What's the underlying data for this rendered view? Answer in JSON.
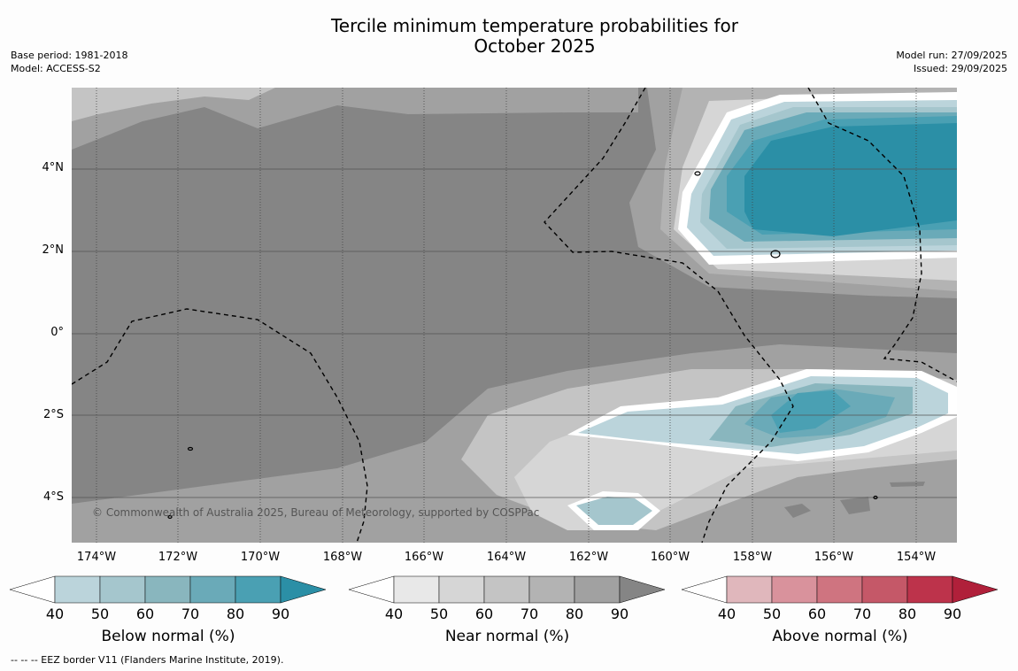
{
  "title_line1": "Tercile minimum temperature probabilities for",
  "title_line2": "October 2025",
  "meta_left": {
    "line1": "Base period: 1981-2018",
    "line2": "Model: ACCESS-S2"
  },
  "meta_right": {
    "line1": "Model run: 27/09/2025",
    "line2": "Issued: 29/09/2025"
  },
  "map": {
    "lat_labels": [
      "4°N",
      "2°N",
      "0°",
      "2°S",
      "4°S"
    ],
    "lon_labels": [
      "174°W",
      "172°W",
      "170°W",
      "168°W",
      "166°W",
      "164°W",
      "162°W",
      "160°W",
      "158°W",
      "156°W",
      "154°W"
    ],
    "copyright": "© Commonwealth of Australia 2025, Bureau of Meteorology, supported by COSPPac",
    "background_color": "#858585"
  },
  "colorbars": [
    {
      "label": "Below normal (%)",
      "ticks": [
        "40",
        "50",
        "60",
        "70",
        "80",
        "90"
      ],
      "colors": [
        "#ffffff",
        "#bbd4db",
        "#a5c6cd",
        "#89b6be",
        "#6aaab8",
        "#4aa0b3",
        "#2b8fa6"
      ]
    },
    {
      "label": "Near normal (%)",
      "ticks": [
        "40",
        "50",
        "60",
        "70",
        "80",
        "90"
      ],
      "colors": [
        "#ffffff",
        "#e8e8e8",
        "#d6d6d6",
        "#c4c4c4",
        "#b3b3b3",
        "#a1a1a1",
        "#858585"
      ]
    },
    {
      "label": "Above normal (%)",
      "ticks": [
        "40",
        "50",
        "60",
        "70",
        "80",
        "90"
      ],
      "colors": [
        "#ffffff",
        "#e0b7bc",
        "#d9929c",
        "#cf7480",
        "#c55868",
        "#bd334b",
        "#b0203a"
      ]
    }
  ],
  "footnote": "--  --  -- EEZ border V11 (Flanders Marine Institute, 2019)."
}
